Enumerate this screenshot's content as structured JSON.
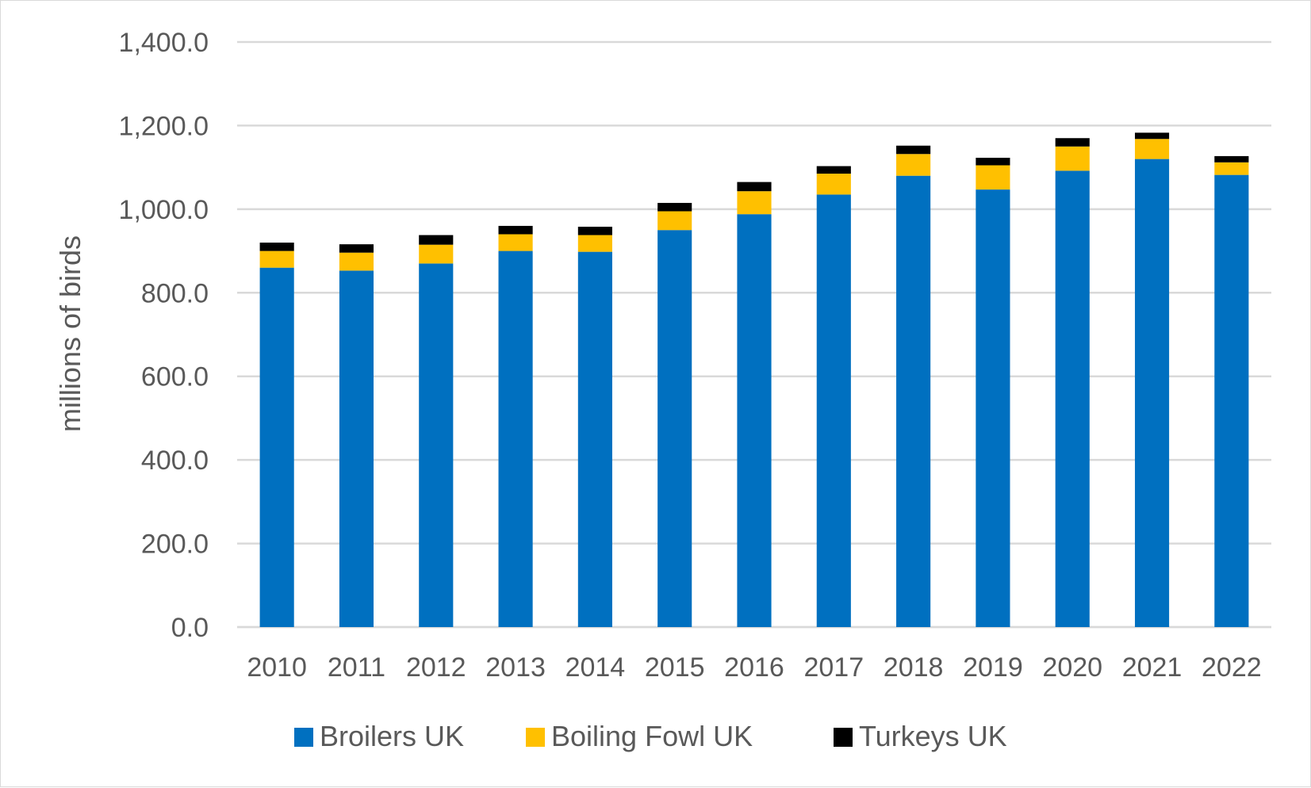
{
  "chart_data": {
    "type": "bar",
    "stacked": true,
    "title": "",
    "xlabel": "",
    "ylabel": "millions of birds",
    "ylim": [
      0,
      1400
    ],
    "yticks": [
      0,
      200,
      400,
      600,
      800,
      1000,
      1200,
      1400
    ],
    "ytick_labels": [
      "0.0",
      "200.0",
      "400.0",
      "600.0",
      "800.0",
      "1,000.0",
      "1,200.0",
      "1,400.0"
    ],
    "grid": true,
    "legend_position": "bottom",
    "categories": [
      "2010",
      "2011",
      "2012",
      "2013",
      "2014",
      "2015",
      "2016",
      "2017",
      "2018",
      "2019",
      "2020",
      "2021",
      "2022"
    ],
    "series": [
      {
        "name": "Broilers UK",
        "color": "#0070c0",
        "values": [
          860,
          853,
          870,
          900,
          898,
          950,
          988,
          1035,
          1080,
          1047,
          1092,
          1120,
          1082
        ]
      },
      {
        "name": "Boiling Fowl UK",
        "color": "#ffc000",
        "values": [
          40,
          43,
          45,
          40,
          40,
          45,
          55,
          50,
          52,
          58,
          58,
          48,
          30
        ]
      },
      {
        "name": "Turkeys UK",
        "color": "#000000",
        "values": [
          20,
          20,
          23,
          20,
          20,
          20,
          22,
          18,
          20,
          18,
          20,
          15,
          15
        ]
      }
    ]
  }
}
